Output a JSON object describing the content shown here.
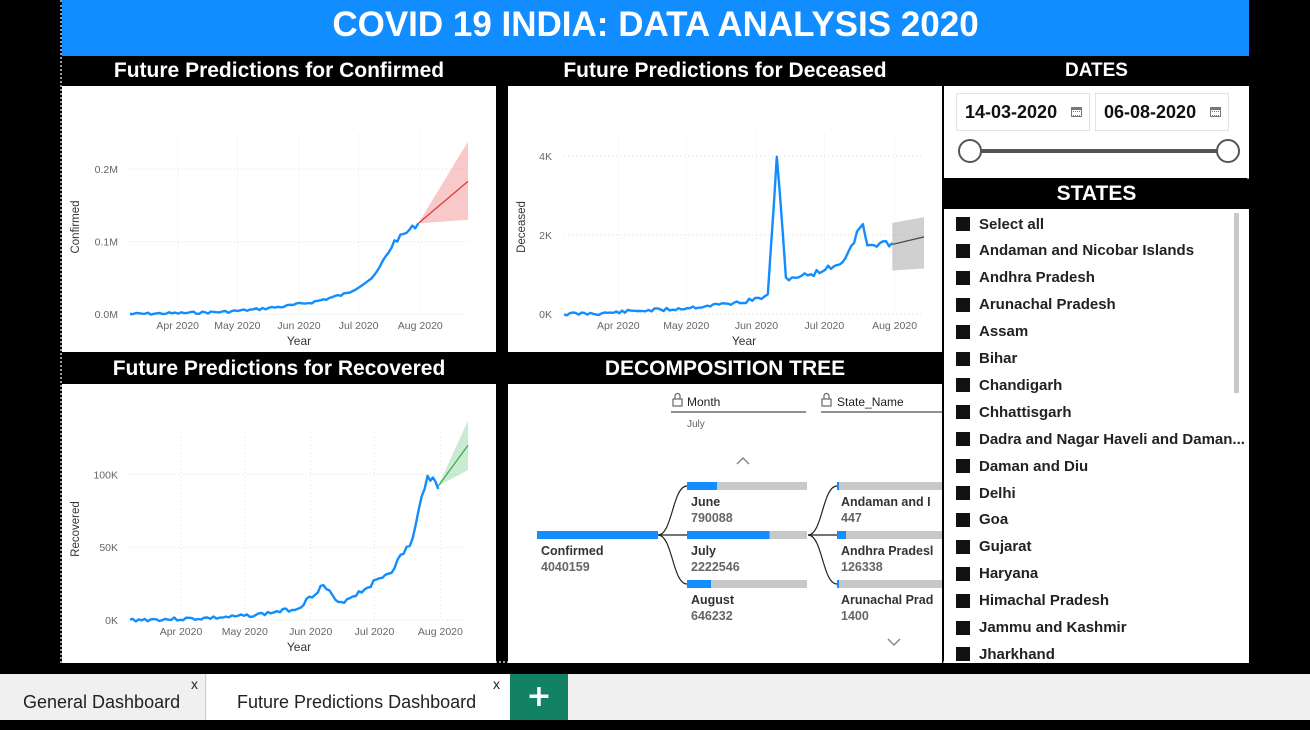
{
  "title": "COVID 19 INDIA: DATA ANALYSIS 2020",
  "colors": {
    "accent": "#118dff",
    "confirmed_forecast": "#e83a3a",
    "recovered_forecast": "#2faa4a",
    "deceased_forecast": "#555555",
    "tab_green": "#138264"
  },
  "confirmed_panel": {
    "title": "Future Predictions for Confirmed",
    "ylabel": "Confirmed",
    "xlabel": "Year",
    "yticks": [
      "0.2M",
      "0.1M",
      "0.0M"
    ],
    "xticks": [
      "Apr 2020",
      "May 2020",
      "Jun 2020",
      "Jul 2020",
      "Aug 2020"
    ]
  },
  "deceased_panel": {
    "title": "Future Predictions for Deceased",
    "ylabel": "Deceased",
    "xlabel": "Year",
    "yticks": [
      "4K",
      "2K",
      "0K"
    ],
    "xticks": [
      "Apr 2020",
      "May 2020",
      "Jun 2020",
      "Jul 2020",
      "Aug 2020"
    ]
  },
  "recovered_panel": {
    "title": "Future Predictions for Recovered",
    "ylabel": "Recovered",
    "xlabel": "Year",
    "yticks": [
      "100K",
      "50K",
      "0K"
    ],
    "xticks": [
      "Apr 2020",
      "May 2020",
      "Jun 2020",
      "Jul 2020",
      "Aug 2020"
    ]
  },
  "chart_data": [
    {
      "type": "line",
      "title": "Future Predictions for Confirmed",
      "xlabel": "Year",
      "ylabel": "Confirmed",
      "ylim": [
        0,
        240000
      ],
      "series": [
        {
          "x": [
            "2020-03-14",
            "2020-04-01",
            "2020-04-15",
            "2020-05-01",
            "2020-05-15",
            "2020-06-01",
            "2020-06-15",
            "2020-07-01",
            "2020-07-15",
            "2020-07-25",
            "2020-08-06"
          ],
          "values": [
            0,
            800,
            1600,
            3000,
            6000,
            11000,
            17000,
            28000,
            52000,
            100000,
            125000
          ]
        }
      ],
      "forecast": {
        "x": [
          "2020-08-06",
          "2020-08-31"
        ],
        "values": [
          125000,
          183000
        ],
        "lower": [
          125000,
          130000
        ],
        "upper": [
          125000,
          238000
        ]
      }
    },
    {
      "type": "line",
      "title": "Future Predictions for Deceased",
      "xlabel": "Year",
      "ylabel": "Deceased",
      "ylim": [
        0,
        4400
      ],
      "series": [
        {
          "x": [
            "2020-03-14",
            "2020-04-01",
            "2020-04-15",
            "2020-05-01",
            "2020-05-15",
            "2020-06-01",
            "2020-06-12",
            "2020-06-16",
            "2020-06-20",
            "2020-07-01",
            "2020-07-15",
            "2020-07-24",
            "2020-07-26",
            "2020-08-06"
          ],
          "values": [
            0,
            20,
            80,
            120,
            200,
            300,
            450,
            4000,
            900,
            1000,
            1300,
            2300,
            1700,
            1800
          ]
        }
      ],
      "forecast": {
        "x": [
          "2020-08-06",
          "2020-08-20"
        ],
        "values": [
          1760,
          1950
        ],
        "lower": [
          1100,
          1150
        ],
        "upper": [
          2300,
          2450
        ]
      }
    },
    {
      "type": "line",
      "title": "Future Predictions for Recovered",
      "xlabel": "Year",
      "ylabel": "Recovered",
      "ylim": [
        0,
        125000
      ],
      "series": [
        {
          "x": [
            "2020-03-14",
            "2020-04-01",
            "2020-04-15",
            "2020-05-01",
            "2020-05-15",
            "2020-06-01",
            "2020-06-13",
            "2020-06-20",
            "2020-07-01",
            "2020-07-15",
            "2020-07-25",
            "2020-08-01",
            "2020-08-06"
          ],
          "values": [
            0,
            500,
            1000,
            2000,
            4000,
            8000,
            24000,
            11000,
            20000,
            34000,
            55000,
            102000,
            90000
          ]
        }
      ],
      "forecast": {
        "x": [
          "2020-08-06",
          "2020-08-20"
        ],
        "values": [
          92000,
          120000
        ],
        "lower": [
          92000,
          103000
        ],
        "upper": [
          92000,
          137000
        ]
      }
    }
  ],
  "decomp": {
    "title": "DECOMPOSITION TREE",
    "level1_header": "Month",
    "level1_sub": "July",
    "level2_header": "State_Name",
    "root": {
      "label": "Confirmed",
      "value": "4040159"
    },
    "months": [
      {
        "label": "June",
        "value": "790088",
        "fraction": 0.2
      },
      {
        "label": "July",
        "value": "2222546",
        "fraction": 0.55
      },
      {
        "label": "August",
        "value": "646232",
        "fraction": 0.16
      }
    ],
    "states": [
      {
        "label": "Andaman and I",
        "value": "447",
        "fraction": 0.0
      },
      {
        "label": "Andhra Pradesl",
        "value": "126338",
        "fraction": 0.06
      },
      {
        "label": "Arunachal Prad",
        "value": "1400",
        "fraction": 0.0
      }
    ]
  },
  "dates": {
    "title": "DATES",
    "start": "14-03-2020",
    "end": "06-08-2020"
  },
  "states": {
    "title": "STATES",
    "items": [
      "Select all",
      "Andaman and Nicobar Islands",
      "Andhra Pradesh",
      "Arunachal Pradesh",
      "Assam",
      "Bihar",
      "Chandigarh",
      "Chhattisgarh",
      "Dadra and Nagar Haveli and Daman...",
      "Daman and Diu",
      "Delhi",
      "Goa",
      "Gujarat",
      "Haryana",
      "Himachal Pradesh",
      "Jammu and Kashmir",
      "Jharkhand"
    ]
  },
  "tabs": [
    {
      "label": "General Dashboard"
    },
    {
      "label": "Future Predictions Dashboard"
    }
  ],
  "add_tab": "+",
  "close_glyph": "x"
}
